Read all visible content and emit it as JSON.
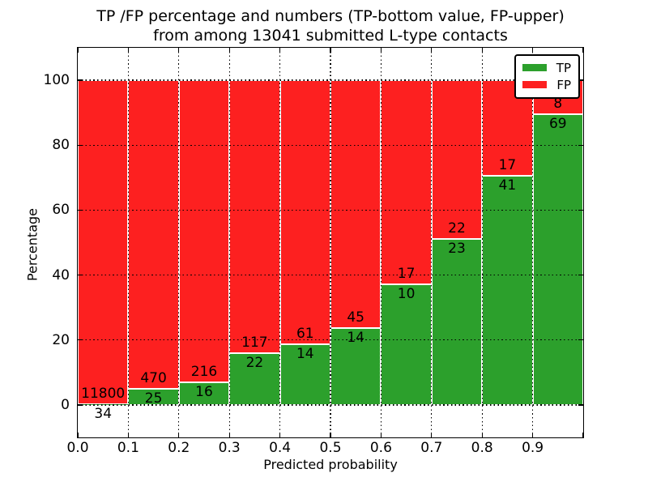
{
  "figure": {
    "title_line1": "TP /FP percentage and numbers (TP-bottom value, FP-upper)",
    "title_line2": "from among 13041 submitted L-type contacts"
  },
  "colors": {
    "tp": "#2ca02c",
    "fp": "#fd2020",
    "grid": "#000000",
    "text": "#000000",
    "bar_edge": "#ffffff",
    "background": "#ffffff"
  },
  "chart_data": {
    "type": "bar",
    "stacked": true,
    "normalized_to_percent": true,
    "title": "TP /FP percentage and numbers (TP-bottom value, FP-upper) from among 13041 submitted L-type contacts",
    "xlabel": "Predicted probability",
    "ylabel": "Percentage",
    "xlim": [
      0.0,
      1.0
    ],
    "ylim": [
      -10,
      110
    ],
    "bin_width": 0.1,
    "grid": "dotted black, drawn above bars",
    "categories": [
      "0.0-0.1",
      "0.1-0.2",
      "0.2-0.3",
      "0.3-0.4",
      "0.4-0.5",
      "0.5-0.6",
      "0.6-0.7",
      "0.7-0.8",
      "0.8-0.9",
      "0.9-1.0"
    ],
    "x_tick_labels": [
      "0.0",
      "0.1",
      "0.2",
      "0.3",
      "0.4",
      "0.5",
      "0.6",
      "0.7",
      "0.8",
      "0.9"
    ],
    "y_ticks": [
      0,
      20,
      40,
      60,
      80,
      100
    ],
    "y_tick_labels": [
      "0",
      "20",
      "40",
      "60",
      "80",
      "100"
    ],
    "series": [
      {
        "name": "TP",
        "values": [
          34,
          25,
          16,
          22,
          14,
          14,
          10,
          23,
          41,
          69
        ]
      },
      {
        "name": "FP",
        "values": [
          11800,
          470,
          216,
          117,
          61,
          45,
          17,
          22,
          17,
          8
        ]
      }
    ],
    "tp_percent": [
      0.29,
      5.05,
      6.9,
      15.83,
      18.67,
      23.73,
      37.04,
      51.11,
      70.69,
      89.61
    ],
    "total_contacts": 13041,
    "legend": {
      "position": "upper right",
      "entries": [
        {
          "label": "TP",
          "color": "#2ca02c"
        },
        {
          "label": "FP",
          "color": "#fd2020"
        }
      ]
    }
  }
}
